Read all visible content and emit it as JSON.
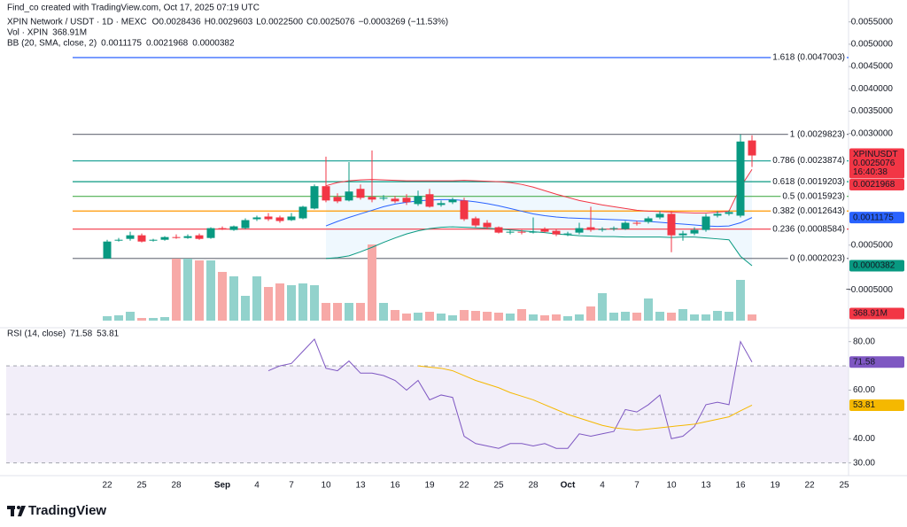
{
  "header": {
    "credit": "Find_co created with TradingView.com, Oct 17, 2025 07:19 UTC",
    "symbol": "XPIN Network / USDT · 1D · MEXC",
    "change": "−0.0003269 (−11.53%)",
    "logo": "TradingView"
  },
  "chart_data": {
    "type": "candlestick",
    "categories": [
      "22",
      null,
      null,
      "25",
      null,
      null,
      "28",
      null,
      null,
      null,
      "Sep",
      null,
      null,
      "4",
      null,
      null,
      "7",
      null,
      null,
      "10",
      null,
      null,
      "13",
      null,
      null,
      "16",
      null,
      null,
      "19",
      null,
      null,
      "22",
      null,
      null,
      "25",
      null,
      null,
      "28",
      null,
      null,
      "Oct",
      null,
      null,
      "4",
      null,
      null,
      "7",
      null,
      null,
      "10",
      null,
      null,
      "13",
      null,
      null,
      "16",
      null,
      null,
      "19",
      null,
      null,
      "22",
      null,
      null,
      "25"
    ],
    "open": [
      0.0002,
      0.0006,
      0.00064,
      0.00072,
      0.0006,
      0.00062,
      0.00068,
      0.00066,
      0.00072,
      0.00066,
      0.00088,
      0.00084,
      0.00088,
      0.00108,
      0.00114,
      0.00112,
      0.00106,
      0.0011,
      0.00132,
      0.00182,
      0.00158,
      0.0015,
      0.00176,
      0.00158,
      0.00154,
      0.00154,
      0.00156,
      0.00142,
      0.00164,
      0.0014,
      0.00146,
      0.0015,
      0.0011,
      0.001,
      0.0009,
      0.00078,
      0.0008,
      0.00078,
      0.00086,
      0.00082,
      0.00074,
      0.00078,
      0.0009,
      0.00084,
      0.00086,
      0.00086,
      0.001,
      0.00102,
      0.00112,
      0.0012,
      0.00072,
      0.00076,
      0.00084,
      0.00116,
      0.0012,
      0.00116,
      0.0028436,
      null,
      null,
      null,
      null,
      null,
      null,
      null,
      null
    ],
    "high": [
      0.00062,
      0.00066,
      0.0008,
      0.00076,
      0.00064,
      0.0007,
      0.00074,
      0.00074,
      0.00076,
      0.0009,
      0.00092,
      0.00094,
      0.0011,
      0.00116,
      0.00122,
      0.00116,
      0.00122,
      0.00138,
      0.00186,
      0.00248,
      0.00166,
      0.00236,
      0.00186,
      0.00262,
      0.00162,
      0.0016,
      0.00164,
      0.00172,
      0.00176,
      0.0015,
      0.00156,
      0.00156,
      0.00114,
      0.00106,
      0.00092,
      0.00084,
      0.00084,
      0.00112,
      0.0009,
      0.00086,
      0.0008,
      0.001,
      0.00136,
      0.0009,
      0.00092,
      0.00104,
      0.00104,
      0.00114,
      0.00126,
      0.00126,
      0.00082,
      0.0009,
      0.0012,
      0.00126,
      0.00128,
      0.00298,
      0.0029603,
      null,
      null,
      null,
      null,
      null,
      null,
      null,
      null
    ],
    "low": [
      0.0002,
      0.00058,
      0.0006,
      0.00056,
      0.00058,
      0.0006,
      0.00064,
      0.00064,
      0.00062,
      0.00064,
      0.00084,
      0.00082,
      0.00086,
      0.00104,
      0.00104,
      0.001,
      0.00104,
      0.00108,
      0.0013,
      0.00146,
      0.00144,
      0.00148,
      0.00152,
      0.00146,
      0.0015,
      0.00144,
      0.0014,
      0.00138,
      0.00134,
      0.00136,
      0.00142,
      0.00104,
      0.0009,
      0.00086,
      0.00076,
      0.00074,
      0.00074,
      0.00076,
      0.00078,
      0.0007,
      0.0007,
      0.00074,
      0.0008,
      0.0008,
      0.00082,
      0.00084,
      0.00094,
      0.00098,
      0.00108,
      0.00034,
      0.0006,
      0.00072,
      0.0008,
      0.00112,
      0.00116,
      0.00112,
      0.00225,
      null,
      null,
      null,
      null,
      null,
      null,
      null,
      null
    ],
    "close": [
      0.00058,
      0.00062,
      0.00072,
      0.00058,
      0.00062,
      0.00068,
      0.00066,
      0.0007,
      0.00064,
      0.00088,
      0.00086,
      0.00092,
      0.00106,
      0.00112,
      0.00108,
      0.00104,
      0.00114,
      0.00136,
      0.00182,
      0.0015,
      0.00148,
      0.0017,
      0.00156,
      0.00152,
      0.00156,
      0.00148,
      0.00146,
      0.0016,
      0.00136,
      0.00144,
      0.00152,
      0.00108,
      0.00094,
      0.0009,
      0.00078,
      0.0008,
      0.00078,
      0.0008,
      0.0008,
      0.00074,
      0.00076,
      0.00088,
      0.00084,
      0.00086,
      0.00088,
      0.001,
      0.00098,
      0.0011,
      0.0012,
      0.00072,
      0.00076,
      0.00084,
      0.00114,
      0.0012,
      0.00124,
      0.00282,
      0.0025076,
      null,
      null,
      null,
      null,
      null,
      null,
      null,
      null
    ],
    "low_label": "0.0022500",
    "ohlc_labels": [
      "O",
      "H",
      "L",
      "C"
    ],
    "up_color": "#089981",
    "down_color": "#f23645",
    "symbol_tag": "XPINUSDT",
    "countdown": "16:40:38",
    "ylim": [
      -0.00135,
      0.00599
    ],
    "yticks": [
      {
        "value": 0.0055,
        "label": "0.0055000"
      },
      {
        "value": 0.005,
        "label": "0.0050000"
      },
      {
        "value": 0.0045,
        "label": "0.0045000"
      },
      {
        "value": 0.004,
        "label": "0.0040000"
      },
      {
        "value": 0.0035,
        "label": "0.0035000"
      },
      {
        "value": 0.003,
        "label": "0.0030000"
      },
      {
        "value": 0.0005,
        "label": "0.0005000"
      },
      {
        "value": -0.0005,
        "label": "−0.0005000"
      }
    ],
    "fib_levels": [
      {
        "label": "1.618 (0.0047003)",
        "value": 0.0047003,
        "color": "#2962ff"
      },
      {
        "label": "1 (0.0029823)",
        "value": 0.0029823,
        "color": "#787b86"
      },
      {
        "label": "0.786 (0.0023874)",
        "value": 0.0023874,
        "color": "#26a69a"
      },
      {
        "label": "0.618 (0.0019203)",
        "value": 0.0019203,
        "color": "#089981"
      },
      {
        "label": "0.5 (0.0015923)",
        "value": 0.0015923,
        "color": "#4caf50"
      },
      {
        "label": "0.382 (0.0012643)",
        "value": 0.0012643,
        "color": "#ff9800"
      },
      {
        "label": "0.236 (0.0008584)",
        "value": 0.0008584,
        "color": "#f23645"
      },
      {
        "label": "0 (0.0002023)",
        "value": 0.0002023,
        "color": "#787b86"
      }
    ],
    "volume": {
      "name": "Vol · XPIN",
      "up_color": "#92d2cc",
      "down_color": "#f7a9a7",
      "values": [
        265,
        318,
        530,
        159,
        159,
        212,
        3710,
        3710,
        3604,
        3604,
        2915,
        2650,
        1484,
        2650,
        2014,
        2226,
        2120,
        2226,
        2120,
        1060,
        1060,
        1060,
        1060,
        4558,
        1060,
        636,
        424,
        477,
        530,
        424,
        318,
        636,
        583,
        530,
        477,
        424,
        689,
        371,
        318,
        371,
        265,
        371,
        848,
        1643,
        477,
        530,
        477,
        1325,
        530,
        477,
        689,
        371,
        371,
        583,
        530,
        2438,
        368.91,
        null,
        null,
        null,
        null,
        null,
        null,
        null,
        null
      ],
      "value_labels": [
        null,
        null,
        null,
        null,
        null,
        null,
        null,
        null,
        null,
        null,
        null,
        null,
        null,
        null,
        null,
        null,
        null,
        null,
        null,
        null,
        null,
        null,
        null,
        null,
        null,
        null,
        null,
        null,
        null,
        null,
        null,
        null,
        null,
        null,
        null,
        null,
        null,
        null,
        null,
        null,
        null,
        null,
        null,
        null,
        null,
        null,
        null,
        null,
        null,
        null,
        null,
        null,
        null,
        null,
        null,
        null,
        "368.91M",
        null,
        null,
        null,
        null,
        null,
        null,
        null,
        null
      ]
    },
    "bollinger": {
      "name": "BB (20, SMA, close, 2)",
      "basis_color": "#2962ff",
      "upper_color": "#f23645",
      "lower_color": "#089981",
      "basis": [
        null,
        null,
        null,
        null,
        null,
        null,
        null,
        null,
        null,
        null,
        null,
        null,
        null,
        null,
        null,
        null,
        null,
        null,
        null,
        0.00093,
        0.00103,
        0.00112,
        0.0012,
        0.00128,
        0.00136,
        0.00142,
        0.00146,
        0.00149,
        0.00151,
        0.00152,
        0.00152,
        0.0015,
        0.00147,
        0.00143,
        0.00138,
        0.00132,
        0.00126,
        0.0012,
        0.00116,
        0.00113,
        0.00111,
        0.0011,
        0.00109,
        0.00108,
        0.00107,
        0.00106,
        0.00104,
        0.00103,
        0.00101,
        0.00099,
        0.00097,
        0.00095,
        0.00093,
        0.00092,
        0.00093,
        0.001,
        0.0011175,
        null,
        null,
        null,
        null,
        null,
        null,
        null,
        null
      ],
      "upper": [
        null,
        null,
        null,
        null,
        null,
        null,
        null,
        null,
        null,
        null,
        null,
        null,
        null,
        null,
        null,
        null,
        null,
        null,
        null,
        0.00183,
        0.0019,
        0.00194,
        0.00196,
        0.00197,
        0.00196,
        0.00195,
        0.00194,
        0.00194,
        0.00194,
        0.00194,
        0.00194,
        0.00195,
        0.00194,
        0.00193,
        0.00192,
        0.0019,
        0.00186,
        0.0018,
        0.00172,
        0.00164,
        0.00157,
        0.0015,
        0.00145,
        0.0014,
        0.00136,
        0.00132,
        0.00128,
        0.00126,
        0.00125,
        0.00124,
        0.00123,
        0.00122,
        0.00122,
        0.00124,
        0.00126,
        0.0018,
        0.0021968,
        null,
        null,
        null,
        null,
        null,
        null,
        null,
        null
      ],
      "lower": [
        null,
        null,
        null,
        null,
        null,
        null,
        null,
        null,
        null,
        null,
        null,
        null,
        null,
        null,
        null,
        null,
        null,
        null,
        null,
        0.0002,
        0.00022,
        0.00026,
        0.00035,
        0.00045,
        0.00056,
        0.00066,
        0.00075,
        0.00082,
        0.00087,
        0.0009,
        0.00091,
        0.0009,
        0.00089,
        0.00088,
        0.00086,
        0.00084,
        0.00082,
        0.0008,
        0.00078,
        0.00075,
        0.00073,
        0.00071,
        0.0007,
        0.00069,
        0.00069,
        0.00068,
        0.00068,
        0.00068,
        0.00068,
        0.00067,
        0.00068,
        0.00068,
        0.00066,
        0.00064,
        0.00062,
        0.00025,
        3.82e-05,
        null,
        null,
        null,
        null,
        null,
        null,
        null,
        null
      ]
    },
    "rsi": {
      "name": "RSI (14, close)",
      "color": "#7e57c2",
      "ma_color": "#f5b800",
      "ylim": [
        25.5,
        83.9
      ],
      "yticks": [
        {
          "value": 80,
          "label": "80.00"
        },
        {
          "value": 60,
          "label": "60.00"
        },
        {
          "value": 40,
          "label": "40.00"
        },
        {
          "value": 30,
          "label": "30.00"
        }
      ],
      "bands": [
        70,
        50,
        30
      ],
      "values": [
        null,
        null,
        null,
        null,
        null,
        null,
        null,
        null,
        null,
        null,
        null,
        null,
        null,
        null,
        68,
        70,
        71,
        76,
        81,
        69,
        68,
        72,
        67,
        67,
        66,
        64,
        60,
        64,
        56,
        58,
        57,
        41,
        38,
        37,
        36,
        38,
        38,
        37,
        38,
        36,
        36,
        42,
        41,
        42,
        43,
        52,
        51,
        54,
        58,
        40,
        41,
        45,
        54,
        55,
        54,
        80,
        71.58,
        null,
        null,
        null,
        null,
        null,
        null,
        null,
        null
      ],
      "ma": [
        null,
        null,
        null,
        null,
        null,
        null,
        null,
        null,
        null,
        null,
        null,
        null,
        null,
        null,
        null,
        null,
        null,
        null,
        null,
        null,
        null,
        null,
        null,
        null,
        null,
        null,
        null,
        70,
        69.5,
        69,
        68,
        66,
        64,
        62.5,
        61,
        59,
        57.5,
        56,
        54,
        52,
        50,
        48.5,
        47,
        45.5,
        44.5,
        44,
        43.5,
        44,
        44.5,
        45,
        45.5,
        46,
        47,
        48,
        49,
        51.5,
        53.81,
        null,
        null,
        null,
        null,
        null,
        null,
        null,
        null
      ]
    }
  }
}
